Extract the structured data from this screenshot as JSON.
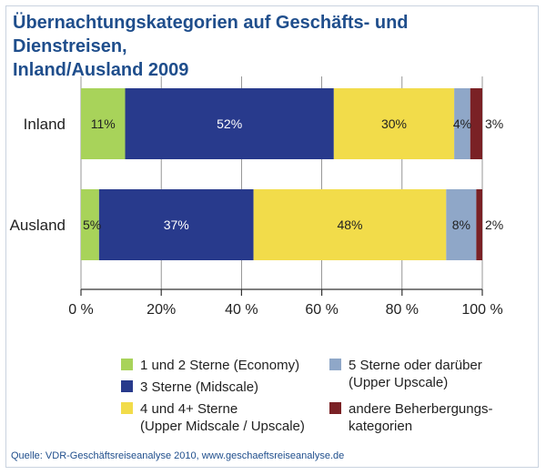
{
  "title": {
    "line1": "Übernachtungskategorien auf Geschäfts- und Dienstreisen,",
    "line2": "Inland/Ausland 2009"
  },
  "colors": {
    "economy": "#a8d35a",
    "midscale": "#283a8c",
    "upper_midscale": "#f2dc4a",
    "upper_upscale": "#8fa7c8",
    "andere": "#7a2125",
    "title": "#1f4e8c"
  },
  "legend": {
    "economy": {
      "line1": "1 und 2 Sterne (Economy)"
    },
    "midscale": {
      "line1": "3 Sterne (Midscale)"
    },
    "upper_midscale": {
      "line1": "4 und 4+ Sterne",
      "line2": "(Upper Midscale / Upscale)"
    },
    "upper_upscale": {
      "line1": "5 Sterne oder darüber",
      "line2": "(Upper Upscale)"
    },
    "andere": {
      "line1": "andere Beherbergungs-",
      "line2": "kategorien"
    }
  },
  "source": "Quelle: VDR-Geschäftsreiseanalyse 2010, www.geschaeftsreiseanalyse.de",
  "chart_data": {
    "type": "bar",
    "orientation": "horizontal",
    "stacked": true,
    "categories": [
      "Inland",
      "Ausland"
    ],
    "series": [
      {
        "name": "1 und 2 Sterne (Economy)",
        "key": "economy",
        "values": [
          11,
          5
        ],
        "labels": [
          "11%",
          "5%"
        ],
        "value_spans": [
          [
            0,
            11
          ],
          [
            0,
            4.5
          ]
        ]
      },
      {
        "name": "3 Sterne (Midscale)",
        "key": "midscale",
        "values": [
          52,
          37
        ],
        "labels": [
          "52%",
          "37%"
        ],
        "value_spans": [
          [
            11,
            63
          ],
          [
            4.5,
            43
          ]
        ]
      },
      {
        "name": "4 und 4+ Sterne (Upper Midscale / Upscale)",
        "key": "upper_midscale",
        "values": [
          30,
          48
        ],
        "labels": [
          "30%",
          "48%"
        ],
        "value_spans": [
          [
            63,
            93
          ],
          [
            43,
            91
          ]
        ]
      },
      {
        "name": "5 Sterne oder darüber (Upper Upscale)",
        "key": "upper_upscale",
        "values": [
          4,
          8
        ],
        "labels": [
          "4%",
          "8%"
        ],
        "value_spans": [
          [
            93,
            97
          ],
          [
            91,
            98.5
          ]
        ]
      },
      {
        "name": "andere Beherbergungskategorien",
        "key": "andere",
        "values": [
          3,
          2
        ],
        "labels": [
          "3%",
          "2%"
        ],
        "value_spans": [
          [
            97,
            100
          ],
          [
            98.5,
            100
          ]
        ]
      }
    ],
    "xlim": [
      0,
      100
    ],
    "xticks": [
      0,
      20,
      40,
      60,
      80,
      100
    ],
    "xtick_labels": [
      "0 %",
      "20%",
      "40 %",
      "60 %",
      "80 %",
      "100 %"
    ],
    "xlabel": "",
    "ylabel": "",
    "legend_position": "bottom"
  }
}
